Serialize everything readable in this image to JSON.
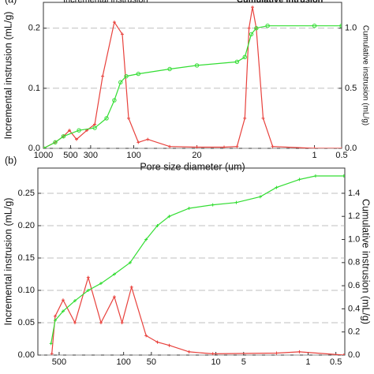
{
  "chart_data": [
    {
      "type": "line",
      "label": "(a)",
      "x_label": "Pore size diameter (um)",
      "y_label": "Incremental instrusion (mL/g)",
      "y2_label": "Cumulative instrusion (mL/g)",
      "xscale": "log",
      "xlim": [
        1000,
        0.5
      ],
      "xticks": [
        1000,
        500,
        300,
        100,
        20,
        1,
        0.5
      ],
      "ylim": [
        0,
        0.243
      ],
      "yticks": [
        {
          "value": 0,
          "label": "0.0"
        },
        {
          "value": 0.1,
          "label": "0.1"
        },
        {
          "value": 0.2,
          "label": "0.2"
        }
      ],
      "y2lim": [
        0,
        1.215
      ],
      "y2ticks": [
        {
          "value": 0,
          "label": "0.0"
        },
        {
          "value": 0.5,
          "label": "0.5"
        },
        {
          "value": 1.0,
          "label": "1.0"
        }
      ],
      "grid": true,
      "series": [
        {
          "name": "Incremental instrusion",
          "color": "#e8413c",
          "marker": "+",
          "x": [
            1000,
            740,
            600,
            515,
            430,
            330,
            270,
            221,
            164,
            134,
            114,
            89,
            70,
            40,
            20,
            10,
            7.2,
            5.9,
            5.3,
            4.85,
            4.4,
            3.7,
            2.9,
            1,
            0.5
          ],
          "values": [
            0,
            0.01,
            0.02,
            0.03,
            0.015,
            0.03,
            0.04,
            0.12,
            0.21,
            0.19,
            0.05,
            0.01,
            0.015,
            0.003,
            0.002,
            0.002,
            0.003,
            0.05,
            0.2,
            0.235,
            0.2,
            0.05,
            0.003,
            0,
            0
          ]
        },
        {
          "name": "Cumulative intrusion",
          "color": "#33dd33",
          "marker": "o",
          "axis": "y2",
          "x": [
            1000,
            740,
            600,
            404,
            270,
            200,
            164,
            140,
            121,
            89,
            40,
            20,
            7.2,
            5.9,
            5.0,
            4.4,
            3.3,
            1,
            0.5
          ],
          "values": [
            0,
            0.05,
            0.1,
            0.15,
            0.17,
            0.25,
            0.4,
            0.55,
            0.6,
            0.62,
            0.66,
            0.69,
            0.72,
            0.76,
            0.95,
            1.0,
            1.02,
            1.02,
            1.02
          ]
        }
      ]
    },
    {
      "type": "line",
      "label": "(b)",
      "y_label": "Incremental instrusion (mL/g)",
      "y2_label": "Cumulative instrusion (mL/g)",
      "xscale": "log",
      "xlim": [
        850,
        0.4
      ],
      "xticks": [
        500,
        100,
        50,
        10,
        5,
        1,
        0.5
      ],
      "ylim": [
        0,
        0.289
      ],
      "yticks": [
        {
          "value": 0,
          "label": "0.00"
        },
        {
          "value": 0.05,
          "label": "0.05"
        },
        {
          "value": 0.1,
          "label": "0.10"
        },
        {
          "value": 0.15,
          "label": "0.15"
        },
        {
          "value": 0.2,
          "label": "0.20"
        },
        {
          "value": 0.25,
          "label": "0.25"
        }
      ],
      "y2lim": [
        0,
        1.618
      ],
      "y2ticks": [
        {
          "value": 0,
          "label": "0.0"
        },
        {
          "value": 0.2,
          "label": "0.2"
        },
        {
          "value": 0.4,
          "label": "0.4"
        },
        {
          "value": 0.6,
          "label": "0.6"
        },
        {
          "value": 0.8,
          "label": "0.8"
        },
        {
          "value": 1.0,
          "label": "1.0"
        },
        {
          "value": 1.2,
          "label": "1.2"
        },
        {
          "value": 1.4,
          "label": "1.4"
        }
      ],
      "grid": true,
      "series": [
        {
          "color": "#e8413c",
          "marker": "+",
          "x": [
            600,
            552,
            453,
            337,
            242,
            176,
            126,
            104,
            82,
            57,
            43,
            32,
            19.5,
            10.8,
            2.2,
            1.24,
            0.41
          ],
          "values": [
            0.002,
            0.06,
            0.085,
            0.05,
            0.12,
            0.05,
            0.09,
            0.05,
            0.105,
            0.03,
            0.02,
            0.015,
            0.005,
            0.002,
            0.003,
            0.005,
            0
          ]
        },
        {
          "color": "#33dd33",
          "marker": "+",
          "axis": "y2",
          "x": [
            612,
            552,
            453,
            337,
            242,
            176,
            126,
            85,
            57,
            43,
            32,
            19.5,
            10.8,
            6,
            3.3,
            2.2,
            1.24,
            0.83,
            0.41
          ],
          "values": [
            0.1,
            0.3,
            0.38,
            0.47,
            0.56,
            0.62,
            0.7,
            0.8,
            1.0,
            1.12,
            1.2,
            1.27,
            1.3,
            1.32,
            1.37,
            1.45,
            1.52,
            1.55,
            1.55
          ]
        }
      ]
    }
  ]
}
